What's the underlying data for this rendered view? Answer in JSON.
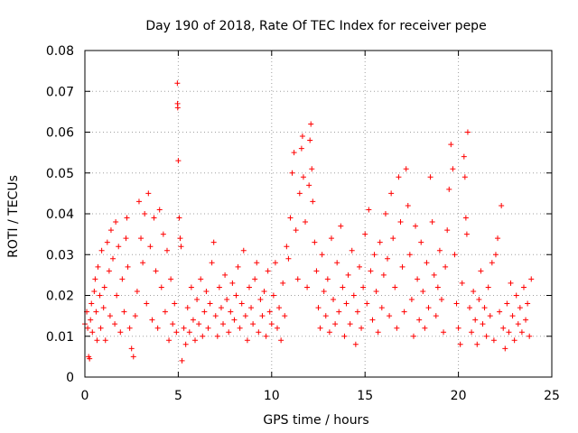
{
  "chart_data": {
    "type": "scatter",
    "title": "Day 190 of 2018, Rate Of TEC Index for receiver pepe",
    "xlabel": "GPS time / hours",
    "ylabel": "ROTI / TECUs",
    "xlim": [
      0,
      25
    ],
    "ylim": [
      0,
      0.08
    ],
    "x_ticks": [
      "0",
      "5",
      "10",
      "15",
      "20",
      "25"
    ],
    "y_ticks": [
      "0",
      "0.01",
      "0.02",
      "0.03",
      "0.04",
      "0.05",
      "0.06",
      "0.07",
      "0.08"
    ],
    "grid": true,
    "marker": "plus",
    "series": [
      {
        "color": "#ff0000",
        "points": [
          [
            0.0,
            0.013
          ],
          [
            0.1,
            0.016
          ],
          [
            0.15,
            0.012
          ],
          [
            0.2,
            0.005
          ],
          [
            0.25,
            0.0045
          ],
          [
            0.3,
            0.014
          ],
          [
            0.35,
            0.018
          ],
          [
            0.4,
            0.011
          ],
          [
            0.5,
            0.021
          ],
          [
            0.55,
            0.024
          ],
          [
            0.6,
            0.016
          ],
          [
            0.65,
            0.009
          ],
          [
            0.7,
            0.027
          ],
          [
            0.8,
            0.02
          ],
          [
            0.85,
            0.012
          ],
          [
            0.9,
            0.031
          ],
          [
            1.0,
            0.017
          ],
          [
            1.05,
            0.022
          ],
          [
            1.1,
            0.009
          ],
          [
            1.2,
            0.033
          ],
          [
            1.3,
            0.026
          ],
          [
            1.35,
            0.015
          ],
          [
            1.4,
            0.036
          ],
          [
            1.5,
            0.029
          ],
          [
            1.6,
            0.013
          ],
          [
            1.65,
            0.038
          ],
          [
            1.7,
            0.02
          ],
          [
            1.8,
            0.032
          ],
          [
            1.9,
            0.011
          ],
          [
            2.0,
            0.024
          ],
          [
            2.1,
            0.016
          ],
          [
            2.2,
            0.034
          ],
          [
            2.25,
            0.039
          ],
          [
            2.3,
            0.027
          ],
          [
            2.4,
            0.012
          ],
          [
            2.5,
            0.007
          ],
          [
            2.6,
            0.005
          ],
          [
            2.7,
            0.015
          ],
          [
            2.8,
            0.021
          ],
          [
            2.9,
            0.043
          ],
          [
            3.0,
            0.034
          ],
          [
            3.1,
            0.028
          ],
          [
            3.2,
            0.04
          ],
          [
            3.3,
            0.018
          ],
          [
            3.4,
            0.045
          ],
          [
            3.5,
            0.032
          ],
          [
            3.6,
            0.014
          ],
          [
            3.7,
            0.039
          ],
          [
            3.8,
            0.026
          ],
          [
            3.9,
            0.012
          ],
          [
            4.0,
            0.041
          ],
          [
            4.1,
            0.022
          ],
          [
            4.2,
            0.035
          ],
          [
            4.3,
            0.016
          ],
          [
            4.4,
            0.031
          ],
          [
            4.5,
            0.009
          ],
          [
            4.6,
            0.024
          ],
          [
            4.7,
            0.013
          ],
          [
            4.8,
            0.018
          ],
          [
            4.9,
            0.011
          ],
          [
            4.95,
            0.072
          ],
          [
            4.96,
            0.067
          ],
          [
            4.97,
            0.066
          ],
          [
            5.0,
            0.053
          ],
          [
            5.05,
            0.039
          ],
          [
            5.1,
            0.034
          ],
          [
            5.15,
            0.032
          ],
          [
            5.2,
            0.004
          ],
          [
            5.3,
            0.012
          ],
          [
            5.4,
            0.008
          ],
          [
            5.5,
            0.017
          ],
          [
            5.6,
            0.011
          ],
          [
            5.7,
            0.022
          ],
          [
            5.8,
            0.014
          ],
          [
            5.9,
            0.009
          ],
          [
            6.0,
            0.019
          ],
          [
            6.1,
            0.013
          ],
          [
            6.2,
            0.024
          ],
          [
            6.3,
            0.01
          ],
          [
            6.4,
            0.016
          ],
          [
            6.5,
            0.021
          ],
          [
            6.6,
            0.012
          ],
          [
            6.7,
            0.018
          ],
          [
            6.8,
            0.028
          ],
          [
            6.9,
            0.033
          ],
          [
            7.0,
            0.015
          ],
          [
            7.1,
            0.01
          ],
          [
            7.2,
            0.022
          ],
          [
            7.3,
            0.017
          ],
          [
            7.4,
            0.013
          ],
          [
            7.5,
            0.025
          ],
          [
            7.6,
            0.019
          ],
          [
            7.7,
            0.011
          ],
          [
            7.8,
            0.016
          ],
          [
            7.9,
            0.023
          ],
          [
            8.0,
            0.014
          ],
          [
            8.1,
            0.02
          ],
          [
            8.2,
            0.027
          ],
          [
            8.3,
            0.012
          ],
          [
            8.4,
            0.018
          ],
          [
            8.5,
            0.031
          ],
          [
            8.6,
            0.015
          ],
          [
            8.7,
            0.009
          ],
          [
            8.8,
            0.022
          ],
          [
            8.9,
            0.017
          ],
          [
            9.0,
            0.013
          ],
          [
            9.1,
            0.024
          ],
          [
            9.2,
            0.028
          ],
          [
            9.3,
            0.011
          ],
          [
            9.4,
            0.019
          ],
          [
            9.5,
            0.015
          ],
          [
            9.6,
            0.021
          ],
          [
            9.7,
            0.01
          ],
          [
            9.8,
            0.026
          ],
          [
            9.9,
            0.016
          ],
          [
            10.0,
            0.013
          ],
          [
            10.1,
            0.02
          ],
          [
            10.2,
            0.028
          ],
          [
            10.3,
            0.012
          ],
          [
            10.4,
            0.017
          ],
          [
            10.5,
            0.009
          ],
          [
            10.6,
            0.023
          ],
          [
            10.7,
            0.015
          ],
          [
            10.8,
            0.032
          ],
          [
            10.9,
            0.029
          ],
          [
            11.0,
            0.039
          ],
          [
            11.1,
            0.05
          ],
          [
            11.2,
            0.055
          ],
          [
            11.3,
            0.036
          ],
          [
            11.4,
            0.024
          ],
          [
            11.5,
            0.045
          ],
          [
            11.6,
            0.056
          ],
          [
            11.65,
            0.059
          ],
          [
            11.7,
            0.049
          ],
          [
            11.8,
            0.038
          ],
          [
            11.9,
            0.022
          ],
          [
            12.0,
            0.047
          ],
          [
            12.05,
            0.058
          ],
          [
            12.1,
            0.062
          ],
          [
            12.15,
            0.051
          ],
          [
            12.2,
            0.043
          ],
          [
            12.3,
            0.033
          ],
          [
            12.4,
            0.026
          ],
          [
            12.5,
            0.017
          ],
          [
            12.6,
            0.012
          ],
          [
            12.7,
            0.03
          ],
          [
            12.8,
            0.021
          ],
          [
            12.9,
            0.015
          ],
          [
            13.0,
            0.024
          ],
          [
            13.1,
            0.011
          ],
          [
            13.2,
            0.034
          ],
          [
            13.3,
            0.019
          ],
          [
            13.4,
            0.013
          ],
          [
            13.5,
            0.028
          ],
          [
            13.6,
            0.016
          ],
          [
            13.7,
            0.037
          ],
          [
            13.8,
            0.022
          ],
          [
            13.9,
            0.01
          ],
          [
            14.0,
            0.018
          ],
          [
            14.1,
            0.025
          ],
          [
            14.2,
            0.013
          ],
          [
            14.3,
            0.031
          ],
          [
            14.4,
            0.02
          ],
          [
            14.5,
            0.008
          ],
          [
            14.6,
            0.016
          ],
          [
            14.7,
            0.027
          ],
          [
            14.8,
            0.012
          ],
          [
            14.9,
            0.022
          ],
          [
            15.0,
            0.035
          ],
          [
            15.1,
            0.018
          ],
          [
            15.2,
            0.041
          ],
          [
            15.3,
            0.026
          ],
          [
            15.4,
            0.014
          ],
          [
            15.5,
            0.03
          ],
          [
            15.6,
            0.021
          ],
          [
            15.7,
            0.011
          ],
          [
            15.8,
            0.033
          ],
          [
            15.9,
            0.017
          ],
          [
            16.0,
            0.025
          ],
          [
            16.1,
            0.04
          ],
          [
            16.2,
            0.029
          ],
          [
            16.3,
            0.015
          ],
          [
            16.4,
            0.045
          ],
          [
            16.5,
            0.034
          ],
          [
            16.6,
            0.022
          ],
          [
            16.7,
            0.012
          ],
          [
            16.8,
            0.049
          ],
          [
            16.9,
            0.038
          ],
          [
            17.0,
            0.027
          ],
          [
            17.1,
            0.016
          ],
          [
            17.2,
            0.051
          ],
          [
            17.3,
            0.042
          ],
          [
            17.4,
            0.03
          ],
          [
            17.5,
            0.019
          ],
          [
            17.6,
            0.01
          ],
          [
            17.7,
            0.037
          ],
          [
            17.8,
            0.024
          ],
          [
            17.9,
            0.014
          ],
          [
            18.0,
            0.033
          ],
          [
            18.1,
            0.021
          ],
          [
            18.2,
            0.012
          ],
          [
            18.3,
            0.028
          ],
          [
            18.4,
            0.017
          ],
          [
            18.5,
            0.049
          ],
          [
            18.6,
            0.038
          ],
          [
            18.7,
            0.025
          ],
          [
            18.8,
            0.015
          ],
          [
            18.9,
            0.022
          ],
          [
            19.0,
            0.031
          ],
          [
            19.1,
            0.019
          ],
          [
            19.2,
            0.011
          ],
          [
            19.3,
            0.027
          ],
          [
            19.4,
            0.036
          ],
          [
            19.5,
            0.046
          ],
          [
            19.6,
            0.057
          ],
          [
            19.7,
            0.051
          ],
          [
            19.8,
            0.03
          ],
          [
            19.9,
            0.018
          ],
          [
            20.0,
            0.012
          ],
          [
            20.1,
            0.008
          ],
          [
            20.2,
            0.023
          ],
          [
            20.3,
            0.054
          ],
          [
            20.35,
            0.049
          ],
          [
            20.4,
            0.039
          ],
          [
            20.45,
            0.035
          ],
          [
            20.5,
            0.06
          ],
          [
            20.6,
            0.017
          ],
          [
            20.7,
            0.011
          ],
          [
            20.8,
            0.021
          ],
          [
            20.9,
            0.014
          ],
          [
            21.0,
            0.008
          ],
          [
            21.1,
            0.019
          ],
          [
            21.2,
            0.026
          ],
          [
            21.3,
            0.013
          ],
          [
            21.4,
            0.017
          ],
          [
            21.5,
            0.01
          ],
          [
            21.6,
            0.022
          ],
          [
            21.7,
            0.015
          ],
          [
            21.8,
            0.028
          ],
          [
            21.9,
            0.009
          ],
          [
            22.0,
            0.03
          ],
          [
            22.1,
            0.034
          ],
          [
            22.2,
            0.016
          ],
          [
            22.3,
            0.042
          ],
          [
            22.4,
            0.012
          ],
          [
            22.5,
            0.007
          ],
          [
            22.6,
            0.018
          ],
          [
            22.7,
            0.011
          ],
          [
            22.8,
            0.023
          ],
          [
            22.9,
            0.015
          ],
          [
            23.0,
            0.009
          ],
          [
            23.1,
            0.02
          ],
          [
            23.2,
            0.013
          ],
          [
            23.3,
            0.017
          ],
          [
            23.4,
            0.011
          ],
          [
            23.5,
            0.022
          ],
          [
            23.6,
            0.014
          ],
          [
            23.7,
            0.018
          ],
          [
            23.8,
            0.01
          ],
          [
            23.9,
            0.024
          ]
        ]
      }
    ]
  }
}
